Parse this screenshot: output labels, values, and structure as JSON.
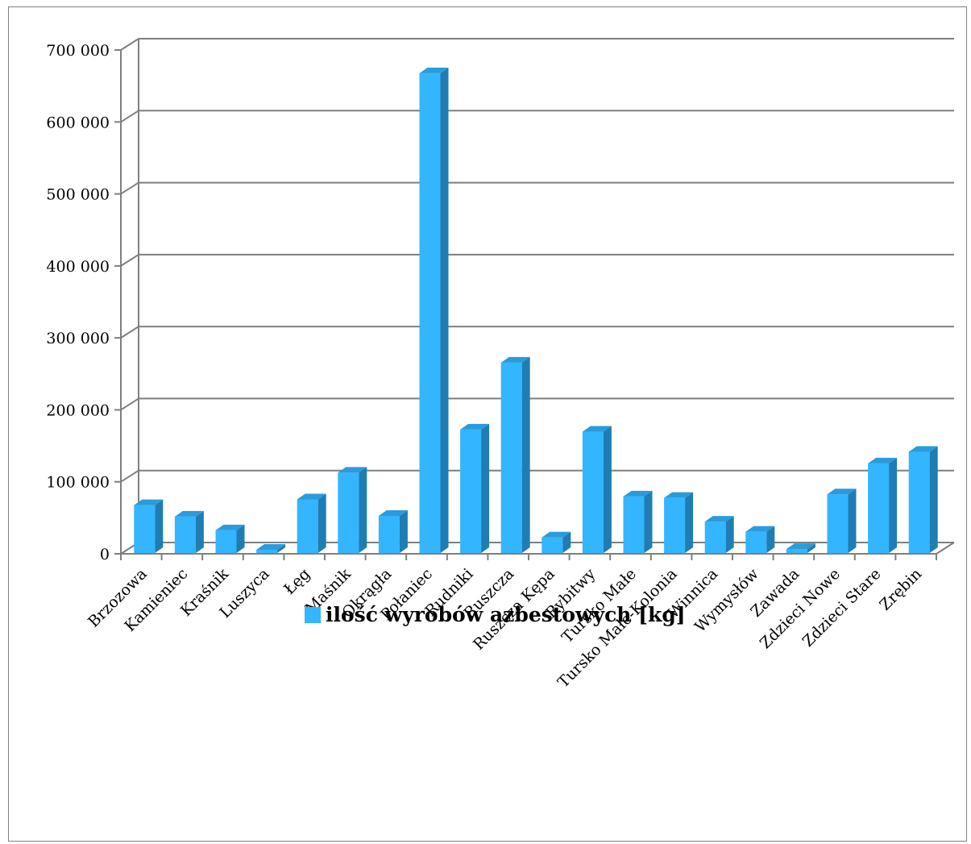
{
  "chart_data": {
    "type": "bar",
    "style": "3d-column",
    "categories": [
      "Brzozowa",
      "Kamieniec",
      "Kraśnik",
      "Luszyca",
      "Łęg",
      "Maśnik",
      "Okrągła",
      "Połaniec",
      "Rudniki",
      "Ruszcza",
      "Ruszcza Kępa",
      "Rybitwy",
      "Tursko Małe",
      "Tursko Małe-Kolonia",
      "Winnica",
      "Wymysłów",
      "Zawada",
      "Zdzieci Nowe",
      "Zdzieci Stare",
      "Zrębin"
    ],
    "series": [
      {
        "name": "ilość wyrobów azbestowych [kg]",
        "color": "#33B5FF",
        "values": [
          70000,
          54000,
          35000,
          8000,
          78000,
          115000,
          55000,
          670000,
          175000,
          268000,
          25000,
          172000,
          82000,
          80000,
          47000,
          33000,
          9000,
          85000,
          128000,
          144000
        ]
      }
    ],
    "ylim": [
      0,
      700000
    ],
    "yticks": [
      {
        "value": 0,
        "label": "0"
      },
      {
        "value": 100000,
        "label": "100 000"
      },
      {
        "value": 200000,
        "label": "200 000"
      },
      {
        "value": 300000,
        "label": "300 000"
      },
      {
        "value": 400000,
        "label": "400 000"
      },
      {
        "value": 500000,
        "label": "500 000"
      },
      {
        "value": 600000,
        "label": "600 000"
      },
      {
        "value": 700000,
        "label": "700 000"
      }
    ],
    "grid": true,
    "legend_position": "bottom"
  }
}
